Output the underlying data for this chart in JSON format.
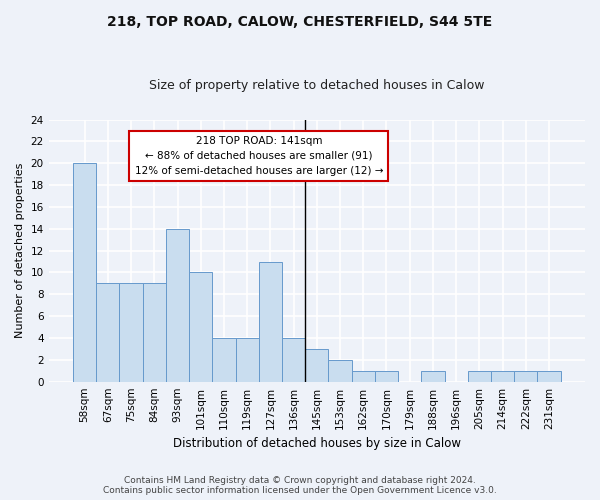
{
  "title1": "218, TOP ROAD, CALOW, CHESTERFIELD, S44 5TE",
  "title2": "Size of property relative to detached houses in Calow",
  "xlabel": "Distribution of detached houses by size in Calow",
  "ylabel": "Number of detached properties",
  "bar_labels": [
    "58sqm",
    "67sqm",
    "75sqm",
    "84sqm",
    "93sqm",
    "101sqm",
    "110sqm",
    "119sqm",
    "127sqm",
    "136sqm",
    "145sqm",
    "153sqm",
    "162sqm",
    "170sqm",
    "179sqm",
    "188sqm",
    "196sqm",
    "205sqm",
    "214sqm",
    "222sqm",
    "231sqm"
  ],
  "bar_values": [
    20,
    9,
    9,
    9,
    14,
    10,
    4,
    4,
    11,
    4,
    3,
    2,
    1,
    1,
    0,
    1,
    0,
    1,
    1,
    1,
    1
  ],
  "bar_color": "#c9ddef",
  "bar_edge_color": "#6699cc",
  "highlight_index": 10,
  "highlight_line_color": "#000000",
  "annotation_text": "218 TOP ROAD: 141sqm\n← 88% of detached houses are smaller (91)\n12% of semi-detached houses are larger (12) →",
  "annotation_box_facecolor": "#ffffff",
  "annotation_box_edgecolor": "#cc0000",
  "ylim": [
    0,
    24
  ],
  "yticks": [
    0,
    2,
    4,
    6,
    8,
    10,
    12,
    14,
    16,
    18,
    20,
    22,
    24
  ],
  "footer_text": "Contains HM Land Registry data © Crown copyright and database right 2024.\nContains public sector information licensed under the Open Government Licence v3.0.",
  "background_color": "#eef2f9",
  "grid_color": "#ffffff",
  "title1_fontsize": 10,
  "title2_fontsize": 9,
  "xlabel_fontsize": 8.5,
  "ylabel_fontsize": 8,
  "tick_fontsize": 7.5,
  "annotation_fontsize": 7.5,
  "footer_fontsize": 6.5
}
